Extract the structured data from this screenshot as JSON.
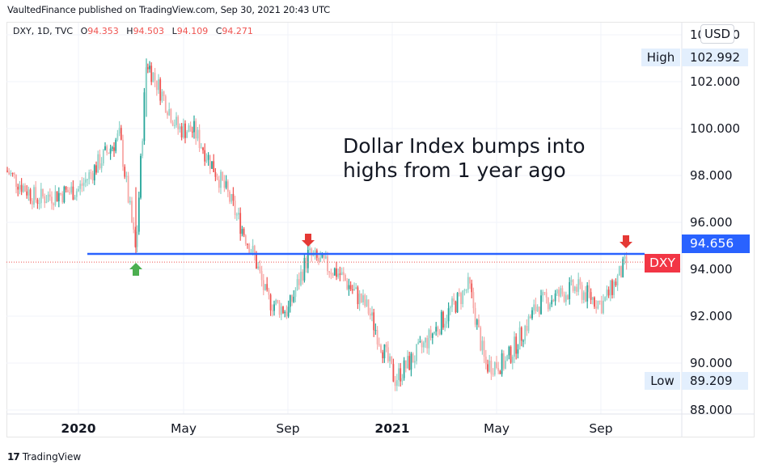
{
  "header": {
    "published": "VaultedFinance published on TradingView.com, Sep 30, 2021 20:43 UTC"
  },
  "legend": {
    "symbol": "DXY, 1D, TVC",
    "open_label": "O",
    "open": "94.353",
    "high_label": "H",
    "high": "94.503",
    "low_label": "L",
    "low": "94.109",
    "close_label": "C",
    "close": "94.271"
  },
  "price_axis": {
    "currency": "USD",
    "high_label": "High",
    "high_value": "102.992",
    "low_label": "Low",
    "low_value": "89.209",
    "line_value": "94.656",
    "symbol_tag": "DXY",
    "ticks": [
      "104.000",
      "102.000",
      "100.000",
      "98.000",
      "96.000",
      "94.000",
      "92.000",
      "90.000",
      "88.000"
    ]
  },
  "annotation": {
    "line1": "Dollar Index bumps into",
    "line2": "highs from 1 year ago"
  },
  "footer": {
    "brand": "TradingView",
    "brand_mark": "17"
  },
  "colors": {
    "up": "#26a69a",
    "up_light": "#8fd3c9",
    "down": "#ef5350",
    "down_light": "#f7a9a7",
    "horizontal_line": "#2962ff",
    "arrow_down": "#e53935",
    "arrow_up": "#4caf50",
    "grid": "#f0f3fa"
  },
  "chart_data": {
    "type": "candlestick",
    "title": "DXY, 1D, TVC",
    "annotation": "Dollar Index bumps into highs from 1 year ago",
    "xlabel": "",
    "ylabel": "USD",
    "x_ticks": [
      "2020",
      "May",
      "Sep",
      "2021",
      "May",
      "Sep"
    ],
    "y_ticks": [
      88,
      90,
      92,
      94,
      96,
      98,
      100,
      102,
      104
    ],
    "ylim": [
      87.8,
      104.5
    ],
    "grid": true,
    "horizontal_line": 94.656,
    "last_close": 94.271,
    "high": 102.992,
    "low": 89.209,
    "markers": [
      {
        "type": "up-arrow",
        "date": "Mar 2020",
        "price": 94.65
      },
      {
        "type": "down-arrow",
        "date": "Sep 2020",
        "price": 94.74
      },
      {
        "type": "down-arrow",
        "date": "Sep 2021",
        "price": 94.5
      }
    ],
    "approx_path": {
      "dates": [
        "Nov 2019",
        "Dec 2019",
        "Jan 2020",
        "Feb 2020",
        "Mar 9 2020",
        "Mar 19 2020",
        "Apr 2020",
        "May 2020",
        "Jun 2020",
        "Jul 2020",
        "Aug 2020",
        "Sep 1 2020",
        "Sep 25 2020",
        "Oct 2020",
        "Nov 2020",
        "Jan 6 2021",
        "Feb 2021",
        "Mar 31 2021",
        "May 2021",
        "Jun 1 2021",
        "Jul 2021",
        "Aug 2021",
        "Sep 2021",
        "Sep 30 2021"
      ],
      "values": [
        98.2,
        97.0,
        97.4,
        99.7,
        94.7,
        102.9,
        100.0,
        99.9,
        97.3,
        94.5,
        92.7,
        92.2,
        94.6,
        93.8,
        92.3,
        89.3,
        90.5,
        93.3,
        89.9,
        90.0,
        92.5,
        93.2,
        92.5,
        94.3
      ]
    }
  }
}
